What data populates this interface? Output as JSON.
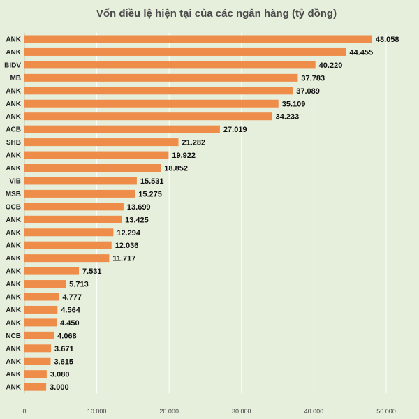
{
  "chart_data": {
    "type": "bar",
    "orientation": "horizontal",
    "title": "Vốn điều lệ hiện tại của các ngân hàng (tỷ đồng)",
    "xlabel": "",
    "ylabel": "",
    "categories": [
      "ANK",
      "ANK",
      "BIDV",
      "MB",
      "ANK",
      "ANK",
      "ANK",
      "ACB",
      "SHB",
      "ANK",
      "ANK",
      "VIB",
      "MSB",
      "OCB",
      "ANK",
      "ANK",
      "ANK",
      "ANK",
      "ANK",
      "ANK",
      "ANK",
      "ANK",
      "ANK",
      "NCB",
      "ANK",
      "ANK",
      "ANK",
      "ANK"
    ],
    "values": [
      48058,
      44455,
      40220,
      37783,
      37089,
      35109,
      34233,
      27019,
      21282,
      19922,
      18852,
      15531,
      15275,
      13699,
      13425,
      12294,
      12036,
      11717,
      7531,
      5713,
      4777,
      4564,
      4450,
      4068,
      3671,
      3615,
      3080,
      3000
    ],
    "value_labels": [
      "48.058",
      "44.455",
      "40.220",
      "37.783",
      "37.089",
      "35.109",
      "34.233",
      "27.019",
      "21.282",
      "19.922",
      "18.852",
      "15.531",
      "15.275",
      "13.699",
      "13.425",
      "12.294",
      "12.036",
      "11.717",
      "7.531",
      "5.713",
      "4.777",
      "4.564",
      "4.450",
      "4.068",
      "3.671",
      "3.615",
      "3.080",
      "3.000"
    ],
    "xlim": [
      0,
      50000
    ],
    "xticks": [
      0,
      10000,
      20000,
      30000,
      40000,
      50000
    ],
    "xtick_labels": [
      "0",
      "10.000",
      "20.000",
      "30.000",
      "40.000",
      "50.000"
    ],
    "grid": true,
    "legend": "none",
    "colors": {
      "background": "#e6eedc",
      "bar": "#ee8d4a",
      "grid": "#ffffff"
    }
  }
}
